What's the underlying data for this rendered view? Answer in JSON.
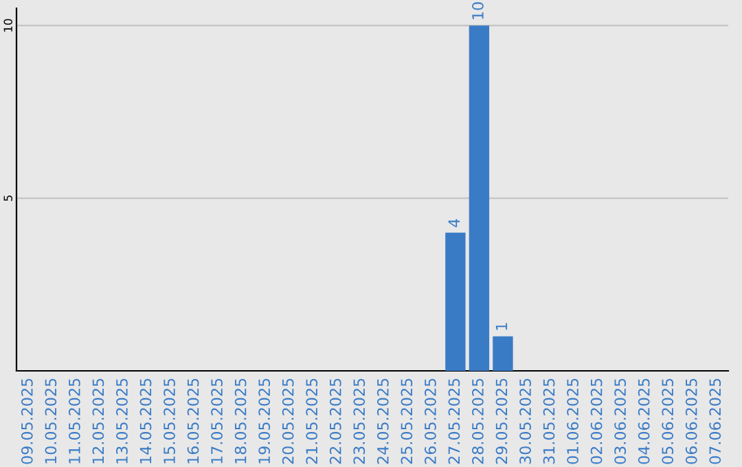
{
  "chart_data": {
    "type": "bar",
    "categories": [
      "09.05.2025",
      "10.05.2025",
      "11.05.2025",
      "12.05.2025",
      "13.05.2025",
      "14.05.2025",
      "15.05.2025",
      "16.05.2025",
      "17.05.2025",
      "18.05.2025",
      "19.05.2025",
      "20.05.2025",
      "21.05.2025",
      "22.05.2025",
      "23.05.2025",
      "24.05.2025",
      "25.05.2025",
      "26.05.2025",
      "27.05.2025",
      "28.05.2025",
      "29.05.2025",
      "30.05.2025",
      "31.05.2025",
      "01.06.2025",
      "02.06.2025",
      "03.06.2025",
      "04.06.2025",
      "05.06.2025",
      "06.06.2025",
      "07.06.2025"
    ],
    "values": [
      0,
      0,
      0,
      0,
      0,
      0,
      0,
      0,
      0,
      0,
      0,
      0,
      0,
      0,
      0,
      0,
      0,
      0,
      4,
      10,
      1,
      0,
      0,
      0,
      0,
      0,
      0,
      0,
      0,
      0
    ],
    "value_labels": [
      null,
      null,
      null,
      null,
      null,
      null,
      null,
      null,
      null,
      null,
      null,
      null,
      null,
      null,
      null,
      null,
      null,
      null,
      "4",
      "10",
      "1",
      null,
      null,
      null,
      null,
      null,
      null,
      null,
      null,
      null
    ],
    "color": "#3a7bc6",
    "ylim": [
      0,
      10.5
    ],
    "yticks": [
      5,
      10
    ],
    "grid": "y"
  }
}
